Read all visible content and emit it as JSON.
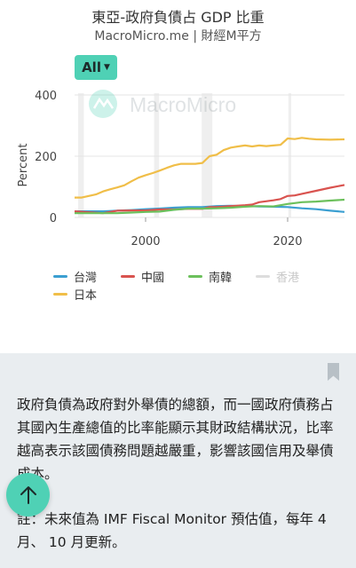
{
  "chart_title": "東亞-政府負債占 GDP 比重",
  "chart_source": "MacroMicro.me | 財經M平方",
  "watermark": "MacroMicro",
  "range_button": "All",
  "colors": {
    "accent": "#4fd1b5",
    "taiwan": "#3b9fd1",
    "china": "#d9534f",
    "korea": "#6cc05c",
    "hongkong": "#cccccc",
    "japan": "#f0be48"
  },
  "chart_data": {
    "type": "line",
    "title": "東亞-政府負債占 GDP 比重",
    "ylabel": "Percent",
    "xlim": [
      1990,
      2028
    ],
    "ylim": [
      0,
      400
    ],
    "yticks": [
      0,
      200,
      400
    ],
    "xticks": [
      2000,
      2020
    ],
    "shaded_periods": [
      [
        1990.5,
        1991.3
      ],
      [
        2001.2,
        2001.9
      ],
      [
        2007.9,
        2009.4
      ],
      [
        2020.1,
        2020.5
      ]
    ],
    "legend": "bottom",
    "series": [
      {
        "name": "台灣",
        "key": "taiwan",
        "visible": true,
        "points": [
          [
            1990,
            20
          ],
          [
            1992,
            20
          ],
          [
            1994,
            20
          ],
          [
            1996,
            22
          ],
          [
            1998,
            24
          ],
          [
            2000,
            27
          ],
          [
            2002,
            29
          ],
          [
            2004,
            32
          ],
          [
            2006,
            34
          ],
          [
            2008,
            34
          ],
          [
            2010,
            37
          ],
          [
            2012,
            38
          ],
          [
            2014,
            37
          ],
          [
            2016,
            36
          ],
          [
            2018,
            35
          ],
          [
            2020,
            34
          ],
          [
            2022,
            30
          ],
          [
            2024,
            27
          ],
          [
            2026,
            22
          ],
          [
            2028,
            18
          ]
        ]
      },
      {
        "name": "中國",
        "key": "china",
        "visible": true,
        "points": [
          [
            1990,
            20
          ],
          [
            1994,
            14
          ],
          [
            1996,
            22
          ],
          [
            1998,
            23
          ],
          [
            2000,
            23
          ],
          [
            2002,
            26
          ],
          [
            2004,
            26
          ],
          [
            2006,
            28
          ],
          [
            2008,
            28
          ],
          [
            2009,
            34
          ],
          [
            2010,
            34
          ],
          [
            2012,
            37
          ],
          [
            2014,
            40
          ],
          [
            2015,
            42
          ],
          [
            2016,
            50
          ],
          [
            2018,
            56
          ],
          [
            2019,
            60
          ],
          [
            2020,
            70
          ],
          [
            2021,
            72
          ],
          [
            2022,
            77
          ],
          [
            2024,
            87
          ],
          [
            2026,
            97
          ],
          [
            2028,
            106
          ]
        ]
      },
      {
        "name": "南韓",
        "key": "korea",
        "visible": true,
        "points": [
          [
            1990,
            14
          ],
          [
            1994,
            14
          ],
          [
            1996,
            14
          ],
          [
            1998,
            16
          ],
          [
            2000,
            18
          ],
          [
            2002,
            19
          ],
          [
            2004,
            25
          ],
          [
            2006,
            29
          ],
          [
            2008,
            29
          ],
          [
            2010,
            30
          ],
          [
            2012,
            32
          ],
          [
            2014,
            35
          ],
          [
            2016,
            37
          ],
          [
            2018,
            36
          ],
          [
            2020,
            44
          ],
          [
            2022,
            50
          ],
          [
            2024,
            52
          ],
          [
            2026,
            55
          ],
          [
            2028,
            58
          ]
        ]
      },
      {
        "name": "香港",
        "key": "hongkong",
        "visible": false,
        "points": []
      },
      {
        "name": "日本",
        "key": "japan",
        "visible": true,
        "points": [
          [
            1990,
            65
          ],
          [
            1991,
            65
          ],
          [
            1992,
            70
          ],
          [
            1993,
            75
          ],
          [
            1994,
            85
          ],
          [
            1995,
            92
          ],
          [
            1996,
            98
          ],
          [
            1997,
            105
          ],
          [
            1998,
            118
          ],
          [
            1999,
            130
          ],
          [
            2000,
            138
          ],
          [
            2001,
            145
          ],
          [
            2002,
            153
          ],
          [
            2003,
            162
          ],
          [
            2004,
            170
          ],
          [
            2005,
            175
          ],
          [
            2006,
            175
          ],
          [
            2007,
            175
          ],
          [
            2008,
            178
          ],
          [
            2009,
            200
          ],
          [
            2010,
            205
          ],
          [
            2011,
            220
          ],
          [
            2012,
            228
          ],
          [
            2013,
            232
          ],
          [
            2014,
            235
          ],
          [
            2015,
            232
          ],
          [
            2016,
            235
          ],
          [
            2017,
            233
          ],
          [
            2018,
            235
          ],
          [
            2019,
            237
          ],
          [
            2020,
            258
          ],
          [
            2021,
            256
          ],
          [
            2022,
            260
          ],
          [
            2023,
            257
          ],
          [
            2024,
            255
          ],
          [
            2026,
            254
          ],
          [
            2028,
            255
          ]
        ]
      }
    ]
  },
  "info": {
    "description": "政府負債為政府對外舉債的總額，而一國政府債務占其國內生產總值的比率能顯示其財政結構狀況，比率越高表示該國債務問題越嚴重，影響該國信用及舉債成本。",
    "note": "註：未來值為 IMF Fiscal Monitor 預估值，每年 4月、 10 月更新。"
  }
}
